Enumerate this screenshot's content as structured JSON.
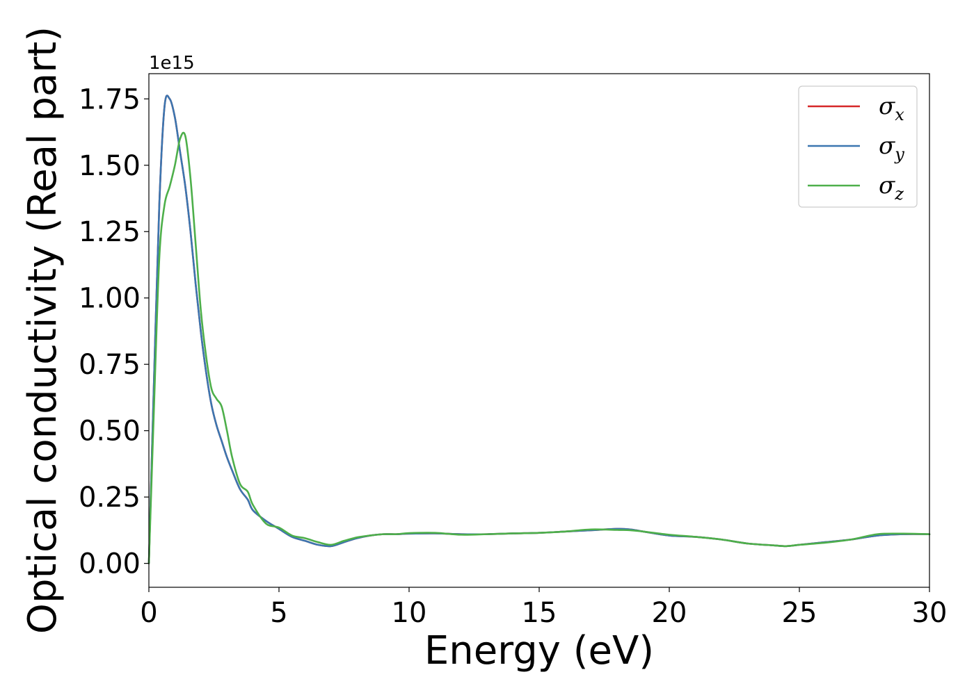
{
  "chart_data": {
    "type": "line",
    "xlabel": "Energy (eV)",
    "ylabel": "Optical conductivity (Real part)",
    "y_offset_label": "1e15",
    "xlim": [
      0,
      30
    ],
    "ylim": [
      -0.09,
      1.845
    ],
    "x_ticks": [
      0,
      5,
      10,
      15,
      20,
      25,
      30
    ],
    "x_tick_labels": [
      "0",
      "5",
      "10",
      "15",
      "20",
      "25",
      "30"
    ],
    "y_ticks": [
      0.0,
      0.25,
      0.5,
      0.75,
      1.0,
      1.25,
      1.5,
      1.75
    ],
    "y_tick_labels": [
      "0.00",
      "0.25",
      "0.50",
      "0.75",
      "1.00",
      "1.25",
      "1.50",
      "1.75"
    ],
    "grid": false,
    "legend_position": "upper-right",
    "series": [
      {
        "name": "σx",
        "symbol": "σ",
        "subscript": "x",
        "color": "#d62728",
        "x": [
          0,
          0.2,
          0.4,
          0.6,
          0.8,
          1.0,
          1.2,
          1.4,
          1.6,
          1.8,
          2.0,
          2.2,
          2.4,
          2.6,
          2.8,
          3.0,
          3.2,
          3.5,
          3.8,
          4.0,
          4.5,
          5.0,
          5.5,
          6.0,
          6.5,
          7.0,
          7.5,
          8.0,
          8.5,
          9.0,
          9.5,
          10,
          11,
          12,
          13,
          14,
          15,
          16,
          17,
          18,
          18.5,
          19,
          20,
          21,
          22,
          23,
          24,
          24.5,
          25,
          26,
          27,
          28,
          29,
          30
        ],
        "y": [
          0.0,
          0.7,
          1.35,
          1.72,
          1.75,
          1.68,
          1.55,
          1.42,
          1.25,
          1.05,
          0.87,
          0.72,
          0.6,
          0.52,
          0.46,
          0.4,
          0.35,
          0.28,
          0.24,
          0.2,
          0.16,
          0.13,
          0.1,
          0.085,
          0.07,
          0.065,
          0.08,
          0.095,
          0.105,
          0.11,
          0.11,
          0.112,
          0.113,
          0.11,
          0.11,
          0.113,
          0.115,
          0.12,
          0.125,
          0.13,
          0.128,
          0.12,
          0.105,
          0.1,
          0.09,
          0.075,
          0.068,
          0.065,
          0.07,
          0.08,
          0.09,
          0.105,
          0.11,
          0.11
        ]
      },
      {
        "name": "σy",
        "symbol": "σ",
        "subscript": "y",
        "color": "#3b76b0",
        "x": [
          0,
          0.2,
          0.4,
          0.6,
          0.8,
          1.0,
          1.2,
          1.4,
          1.6,
          1.8,
          2.0,
          2.2,
          2.4,
          2.6,
          2.8,
          3.0,
          3.2,
          3.5,
          3.8,
          4.0,
          4.5,
          5.0,
          5.5,
          6.0,
          6.5,
          7.0,
          7.5,
          8.0,
          8.5,
          9.0,
          9.5,
          10,
          11,
          12,
          13,
          14,
          15,
          16,
          17,
          18,
          18.5,
          19,
          20,
          21,
          22,
          23,
          24,
          24.5,
          25,
          26,
          27,
          28,
          29,
          30
        ],
        "y": [
          0.0,
          0.7,
          1.35,
          1.72,
          1.75,
          1.68,
          1.55,
          1.42,
          1.25,
          1.05,
          0.87,
          0.72,
          0.6,
          0.52,
          0.46,
          0.4,
          0.35,
          0.28,
          0.24,
          0.2,
          0.16,
          0.13,
          0.1,
          0.085,
          0.07,
          0.065,
          0.08,
          0.095,
          0.105,
          0.11,
          0.11,
          0.112,
          0.113,
          0.11,
          0.11,
          0.113,
          0.115,
          0.12,
          0.125,
          0.13,
          0.128,
          0.12,
          0.105,
          0.1,
          0.09,
          0.075,
          0.068,
          0.065,
          0.07,
          0.08,
          0.09,
          0.105,
          0.11,
          0.11
        ]
      },
      {
        "name": "σz",
        "symbol": "σ",
        "subscript": "z",
        "color": "#4daf4a",
        "x": [
          0,
          0.2,
          0.4,
          0.6,
          0.8,
          1.0,
          1.2,
          1.4,
          1.6,
          1.8,
          2.0,
          2.2,
          2.4,
          2.6,
          2.8,
          3.0,
          3.2,
          3.5,
          3.8,
          4.0,
          4.5,
          5.0,
          5.5,
          6.0,
          6.5,
          7.0,
          7.5,
          8.0,
          8.5,
          9.0,
          9.5,
          10,
          11,
          12,
          13,
          14,
          15,
          16,
          17,
          18,
          18.5,
          19,
          20,
          21,
          22,
          23,
          24,
          24.5,
          25,
          26,
          27,
          28,
          29,
          30
        ],
        "y": [
          0.0,
          0.6,
          1.15,
          1.35,
          1.42,
          1.5,
          1.6,
          1.61,
          1.45,
          1.2,
          0.95,
          0.78,
          0.66,
          0.62,
          0.59,
          0.5,
          0.4,
          0.3,
          0.27,
          0.22,
          0.15,
          0.135,
          0.105,
          0.095,
          0.08,
          0.07,
          0.085,
          0.098,
          0.105,
          0.11,
          0.11,
          0.114,
          0.115,
          0.108,
          0.11,
          0.113,
          0.115,
          0.12,
          0.128,
          0.126,
          0.125,
          0.12,
          0.108,
          0.1,
          0.09,
          0.075,
          0.068,
          0.065,
          0.07,
          0.078,
          0.09,
          0.11,
          0.112,
          0.11
        ]
      }
    ]
  }
}
